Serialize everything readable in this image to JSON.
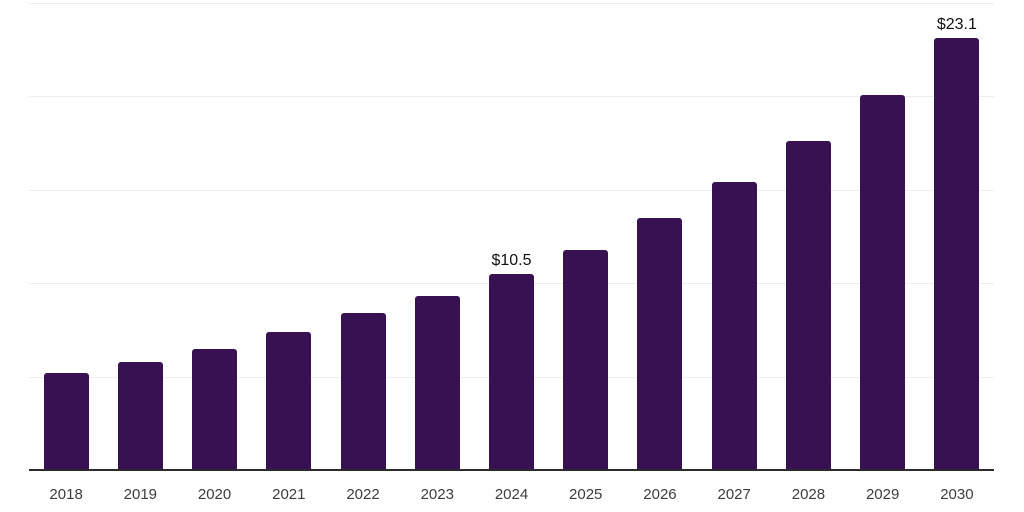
{
  "chart_data": {
    "type": "bar",
    "title": "",
    "xlabel": "",
    "ylabel": "",
    "categories": [
      "2018",
      "2019",
      "2020",
      "2021",
      "2022",
      "2023",
      "2024",
      "2025",
      "2026",
      "2027",
      "2028",
      "2029",
      "2030"
    ],
    "values": [
      5.2,
      5.8,
      6.5,
      7.4,
      8.4,
      9.3,
      10.5,
      11.8,
      13.5,
      15.4,
      17.6,
      20.1,
      23.1
    ],
    "value_labels": {
      "2024": "$10.5",
      "2030": "$23.1"
    },
    "ylim": [
      0,
      25
    ],
    "grid": true,
    "grid_step": 5,
    "legend": "none",
    "colors": {
      "bar": "#371152",
      "axis": "#2b2b2b",
      "gridline": "#ededed",
      "tick_label": "#3d3d3d",
      "value_label": "#111111",
      "background": "#ffffff"
    }
  }
}
